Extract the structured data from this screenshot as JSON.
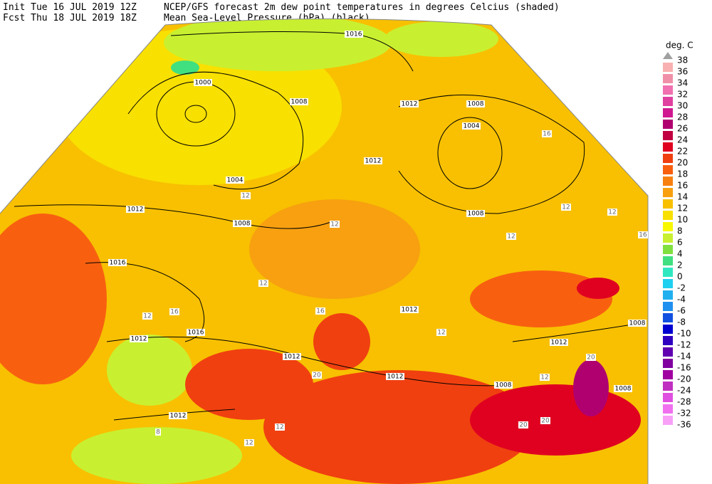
{
  "header": {
    "init": "Init  Tue 16 JUL 2019 12Z",
    "fcst": "Fcst Thu 18 JUL 2019 18Z",
    "title": "NCEP/GFS forecast 2m dew point temperatures in degrees Celcius (shaded)",
    "subtitle": "Mean Sea-Level Pressure (hPa) (black)"
  },
  "legend": {
    "title": "deg. C",
    "levels": [
      38,
      36,
      34,
      32,
      30,
      28,
      26,
      24,
      22,
      20,
      18,
      16,
      14,
      12,
      10,
      8,
      6,
      4,
      2,
      0,
      -2,
      -4,
      -6,
      -8,
      -10,
      -12,
      -14,
      -16,
      -20,
      -24,
      -28,
      -32,
      -36
    ],
    "colors": [
      "#a0a0a0",
      "#f8b0b0",
      "#f090a8",
      "#f070b0",
      "#e040a0",
      "#d01890",
      "#b00070",
      "#c00040",
      "#e00020",
      "#f04010",
      "#f86010",
      "#f88010",
      "#f8a010",
      "#f8c000",
      "#f8e000",
      "#f8f800",
      "#c8f030",
      "#80e040",
      "#40e080",
      "#30e8c0",
      "#20d0f0",
      "#20b0f0",
      "#2090f0",
      "#1050e0",
      "#0000d0",
      "#3000c0",
      "#6000b0",
      "#8000a0",
      "#a000a0",
      "#c030c0",
      "#e050e0",
      "#f070f0",
      "#f8a0f8"
    ]
  },
  "isobar_labels": [
    "1016",
    "1000",
    "1008",
    "1012",
    "1008",
    "1004",
    "1004",
    "1012",
    "1008",
    "1012",
    "1008",
    "1016",
    "1012",
    "1016",
    "1012",
    "1012",
    "1012",
    "1008",
    "1012",
    "1008",
    "1008",
    "1012"
  ],
  "temperature_labels": [
    "12",
    "12",
    "12",
    "12",
    "16",
    "12",
    "16",
    "12",
    "16",
    "12",
    "20",
    "20",
    "20",
    "20",
    "12",
    "12",
    "12",
    "8",
    "12",
    "16"
  ]
}
